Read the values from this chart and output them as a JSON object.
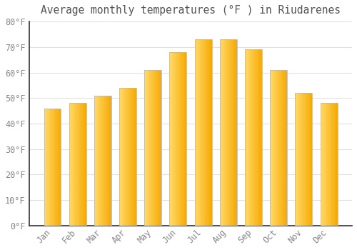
{
  "months": [
    "Jan",
    "Feb",
    "Mar",
    "Apr",
    "May",
    "Jun",
    "Jul",
    "Aug",
    "Sep",
    "Oct",
    "Nov",
    "Dec"
  ],
  "values": [
    46,
    48,
    51,
    54,
    61,
    68,
    73,
    73,
    69,
    61,
    52,
    48
  ],
  "bar_color_left": "#FFD966",
  "bar_color_right": "#F5A800",
  "bar_color_mid": "#FDB927",
  "background_color": "#FFFFFF",
  "plot_bg_color": "#FFFFFF",
  "grid_color": "#E0E0E0",
  "title": "Average monthly temperatures (°F ) in Riudarenes",
  "title_fontsize": 10.5,
  "tick_fontsize": 8.5,
  "ylim": [
    0,
    80
  ],
  "yticks": [
    0,
    10,
    20,
    30,
    40,
    50,
    60,
    70,
    80
  ],
  "ytick_labels": [
    "0°F",
    "10°F",
    "20°F",
    "30°F",
    "40°F",
    "50°F",
    "60°F",
    "70°F",
    "80°F"
  ]
}
